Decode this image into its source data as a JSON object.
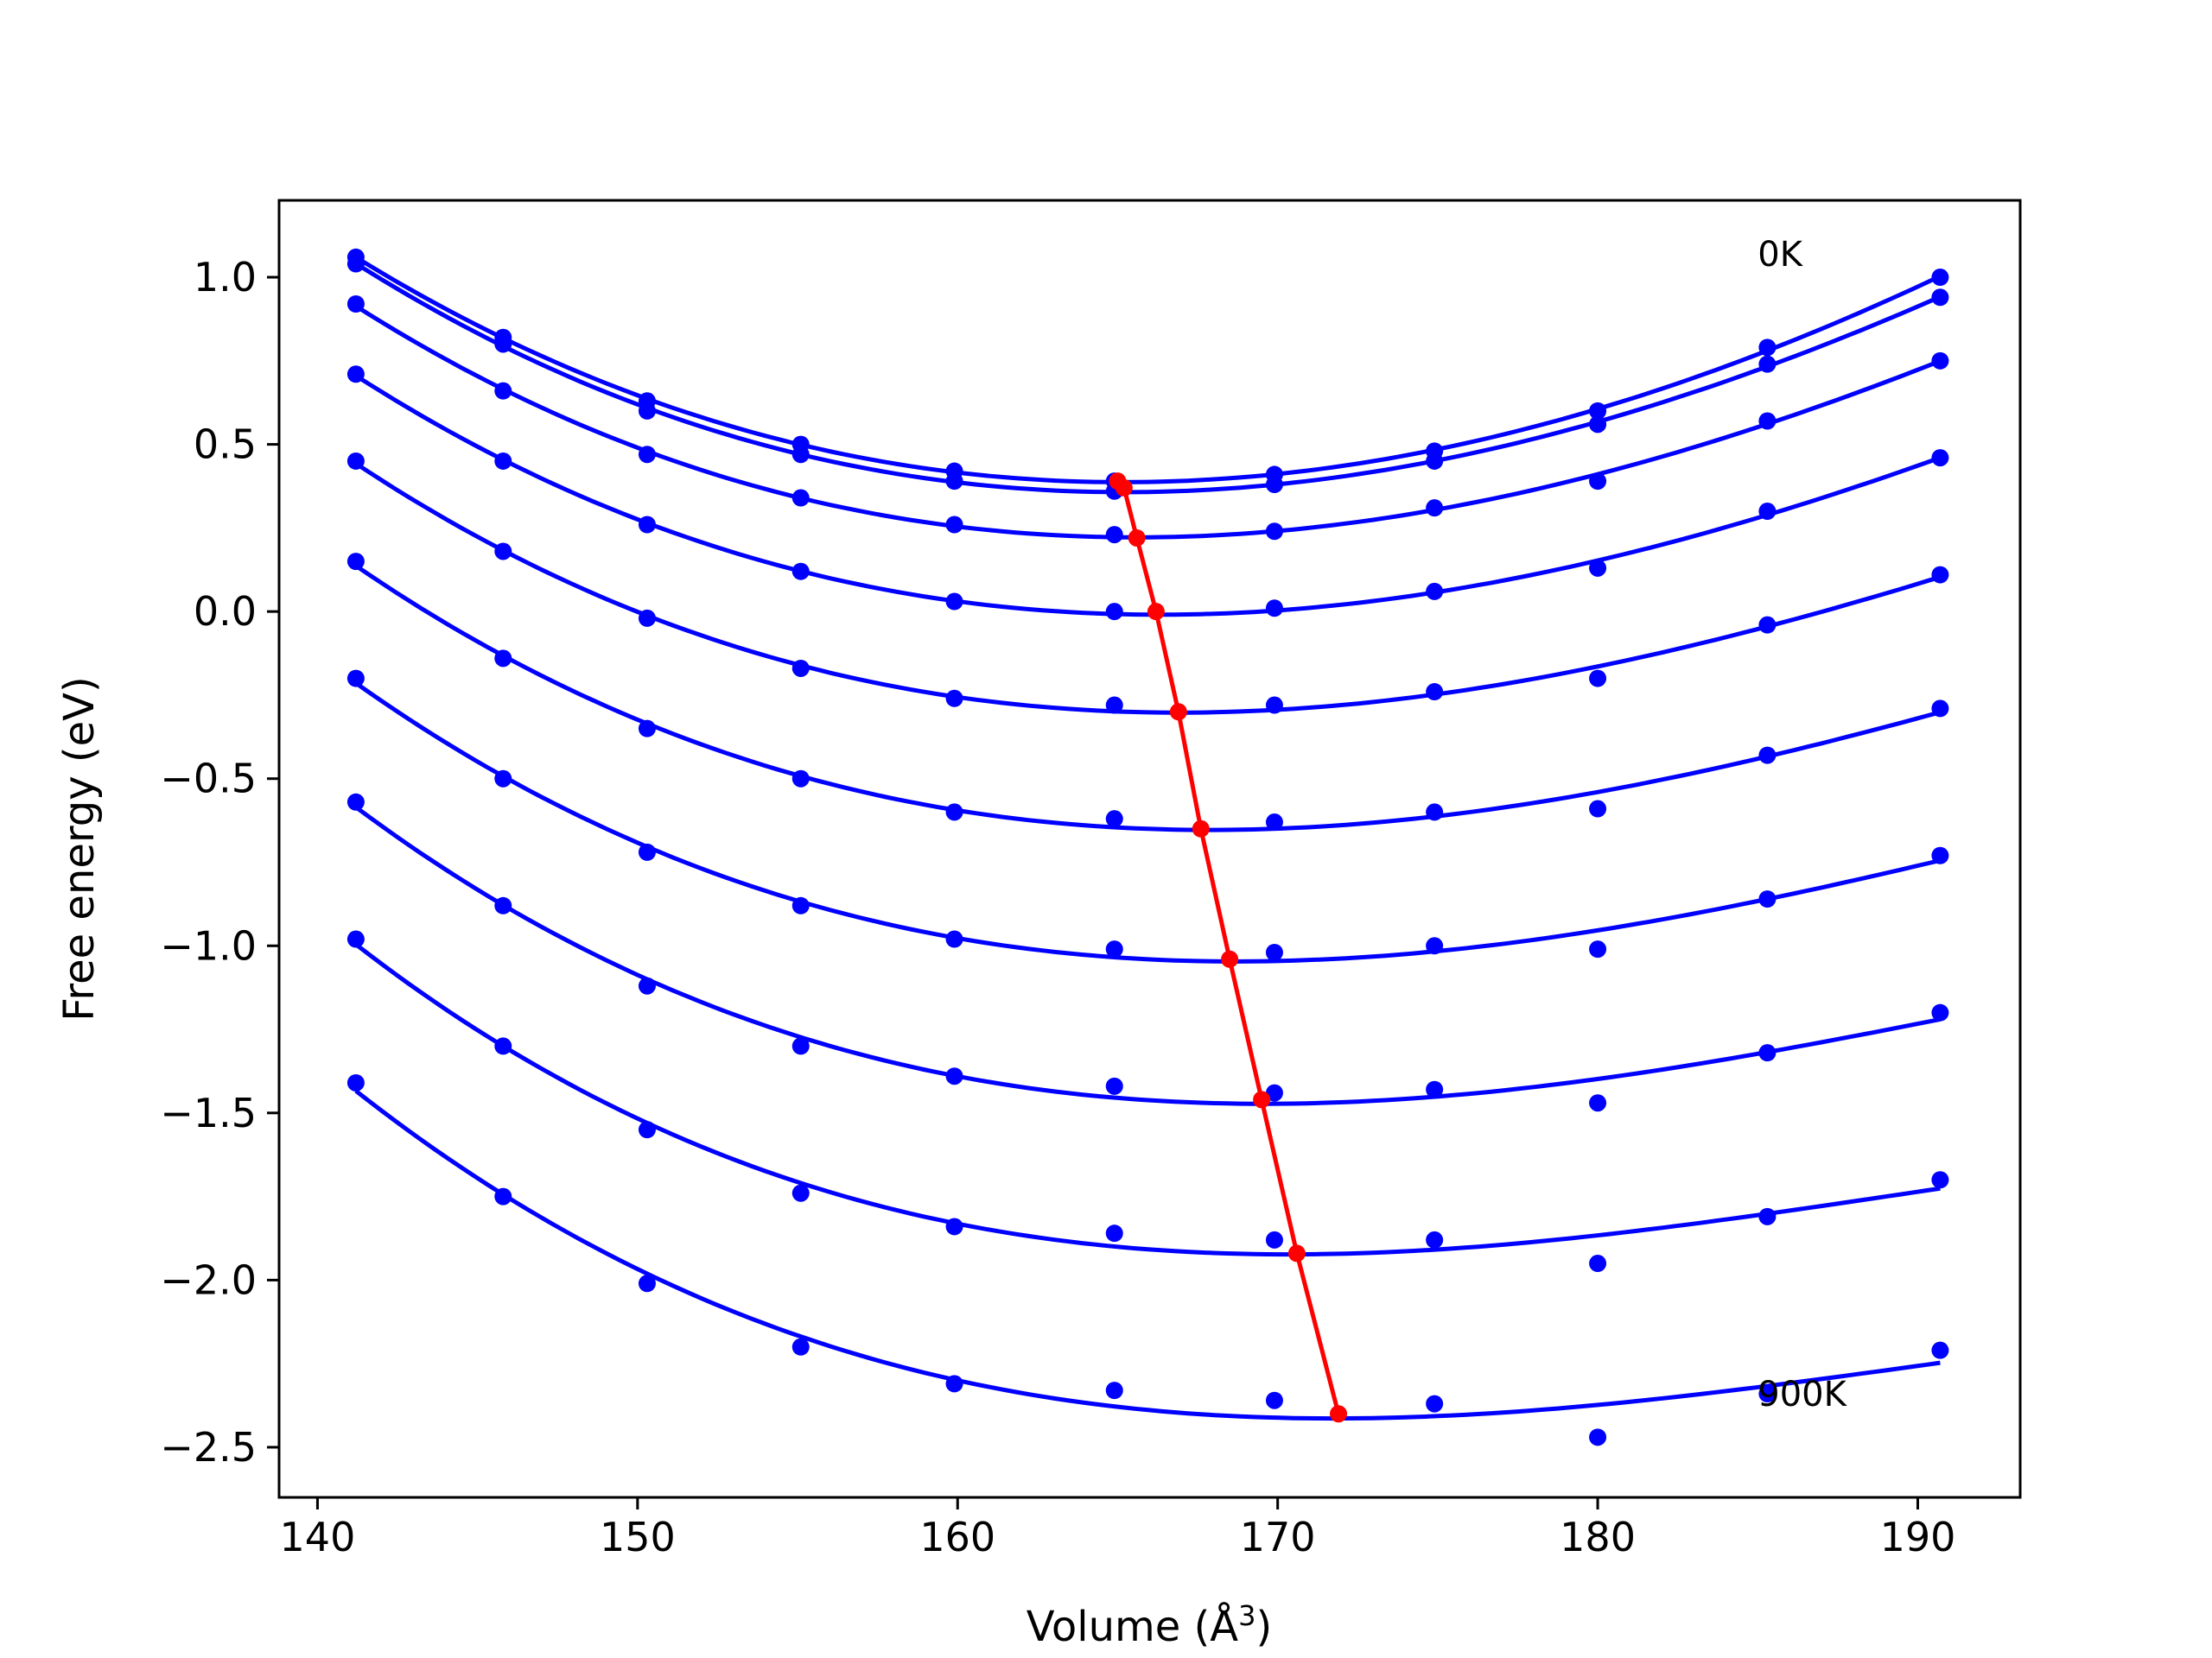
{
  "chart_data": {
    "type": "line",
    "xlabel": "Volume (Å",
    "xlabel_sup": "3",
    "xlabel_close": ")",
    "ylabel": "Free energy (eV)",
    "xlim": [
      138.8,
      193.2
    ],
    "ylim": [
      -2.65,
      1.23
    ],
    "xticks": [
      140,
      150,
      160,
      170,
      180,
      190
    ],
    "yticks": [
      1.0,
      0.5,
      0.0,
      -0.5,
      -1.0,
      -1.5,
      -2.0,
      -2.5
    ],
    "xtick_labels": [
      "140",
      "150",
      "160",
      "170",
      "180",
      "190"
    ],
    "ytick_labels": [
      "1.0",
      "0.5",
      "0.0",
      "−0.5",
      "−1.0",
      "−1.5",
      "−2.0",
      "−2.5"
    ],
    "annotations": [
      {
        "text": "0K",
        "x": 185.0,
        "y": 1.07
      },
      {
        "text": "900K",
        "x": 185.0,
        "y": -2.34
      }
    ],
    "colors": {
      "curves": "#0000ff",
      "points": "#0000ff",
      "minima": "#ff0000"
    },
    "volumes": [
      141.2,
      145.8,
      150.3,
      155.1,
      159.9,
      164.9,
      169.9,
      174.9,
      180.0,
      185.3,
      190.7
    ],
    "series": [
      {
        "energies": [
          1.06,
          0.82,
          0.63,
          0.5,
          0.42,
          0.39,
          0.41,
          0.48,
          0.6,
          0.79,
          1.0
        ],
        "fit_min_volume": 165.0,
        "fit_min_energy": 0.39
      },
      {
        "energies": [
          1.04,
          0.8,
          0.6,
          0.47,
          0.39,
          0.36,
          0.38,
          0.45,
          0.56,
          0.74,
          0.94
        ],
        "fit_min_volume": 165.2,
        "fit_min_energy": 0.37
      },
      {
        "energies": [
          0.92,
          0.66,
          0.47,
          0.34,
          0.26,
          0.23,
          0.24,
          0.31,
          0.39,
          0.57,
          0.75
        ],
        "fit_min_volume": 165.6,
        "fit_min_energy": 0.22
      },
      {
        "energies": [
          0.71,
          0.45,
          0.26,
          0.12,
          0.03,
          0.0,
          0.01,
          0.06,
          0.13,
          0.3,
          0.46
        ],
        "fit_min_volume": 166.2,
        "fit_min_energy": 0.0
      },
      {
        "energies": [
          0.45,
          0.18,
          -0.02,
          -0.17,
          -0.26,
          -0.28,
          -0.28,
          -0.24,
          -0.2,
          -0.04,
          0.11
        ],
        "fit_min_volume": 166.9,
        "fit_min_energy": -0.3
      },
      {
        "energies": [
          0.15,
          -0.14,
          -0.35,
          -0.5,
          -0.6,
          -0.62,
          -0.63,
          -0.6,
          -0.59,
          -0.43,
          -0.29
        ],
        "fit_min_volume": 167.6,
        "fit_min_energy": -0.65
      },
      {
        "energies": [
          -0.2,
          -0.5,
          -0.72,
          -0.88,
          -0.98,
          -1.01,
          -1.02,
          -1.0,
          -1.01,
          -0.86,
          -0.73
        ],
        "fit_min_volume": 168.5,
        "fit_min_energy": -1.04
      },
      {
        "energies": [
          -0.57,
          -0.88,
          -1.12,
          -1.3,
          -1.39,
          -1.42,
          -1.44,
          -1.43,
          -1.47,
          -1.32,
          -1.2
        ],
        "fit_min_volume": 169.5,
        "fit_min_energy": -1.46
      },
      {
        "energies": [
          -0.98,
          -1.3,
          -1.55,
          -1.74,
          -1.84,
          -1.86,
          -1.88,
          -1.88,
          -1.95,
          -1.81,
          -1.7
        ],
        "fit_min_volume": 170.6,
        "fit_min_energy": -1.92
      },
      {
        "energies": [
          -1.41,
          -1.75,
          -2.01,
          -2.2,
          -2.31,
          -2.33,
          -2.36,
          -2.37,
          -2.47,
          -2.34,
          -2.21
        ],
        "fit_min_volume": 171.9,
        "fit_min_energy": -2.4
      }
    ]
  }
}
